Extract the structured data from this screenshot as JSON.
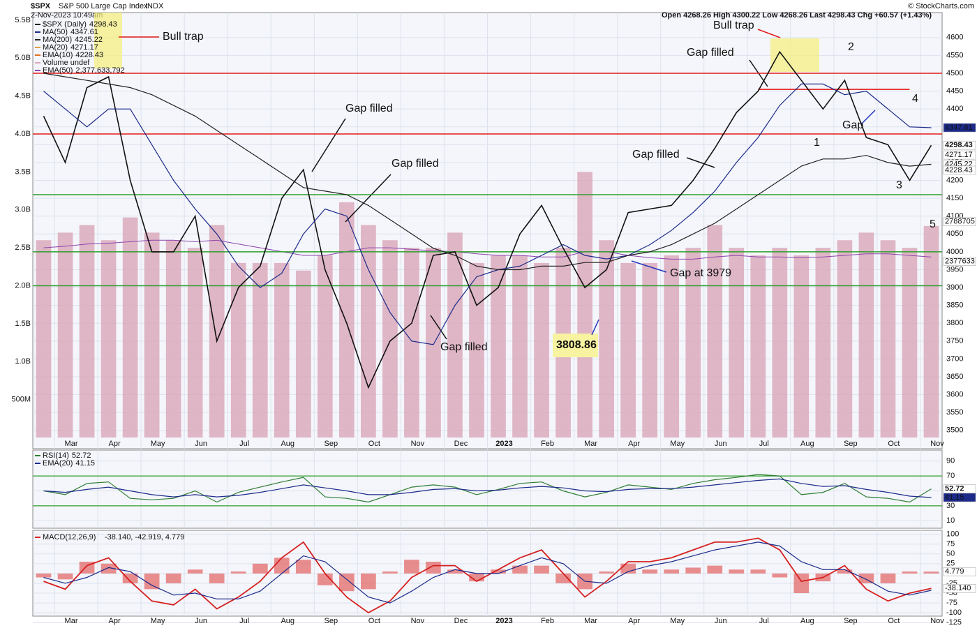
{
  "header": {
    "symbol": "$SPX",
    "name": "S&P 500 Large Cap Index",
    "exchange": "INDX",
    "timestamp": "2-Nov-2023 10:49am",
    "quote": "Open 4268.26  High 4300.22  Low 4268.26  Last 4298.43  Chg +60.57 (+1.43%)",
    "copyright": "© StockCharts.com"
  },
  "annotations": [
    "Bull trap",
    "Bull trap",
    "Gap filled",
    "Gap filled",
    "Gap filled",
    "Gap filled",
    "Gap filled",
    "Gap at 3979",
    "Gap",
    "3808.86",
    "1",
    "2",
    "3",
    "4",
    "5"
  ],
  "chart_data": [
    {
      "type": "line",
      "categories": [
        null,
        "Mar",
        null,
        "Apr",
        null,
        "May",
        null,
        "Jun",
        null,
        "Jul",
        null,
        "Aug",
        null,
        "Sep",
        null,
        "Oct",
        null,
        "Nov",
        null,
        "Dec",
        null,
        "2023",
        null,
        "Feb",
        null,
        "Mar",
        null,
        "Apr",
        null,
        "May",
        null,
        "Jun",
        null,
        "Jul",
        null,
        "Aug",
        null,
        "Sep",
        null,
        "Oct",
        null,
        "Nov"
      ],
      "ylim": [
        3480,
        4670
      ],
      "yticks": [
        3500,
        3550,
        3600,
        3650,
        3700,
        3750,
        3800,
        3850,
        3900,
        3950,
        4000,
        4050,
        4100,
        4150,
        4200,
        4250,
        4300,
        4350,
        4400,
        4450,
        4500,
        4550,
        4600
      ],
      "grid": true,
      "series": [
        {
          "name": "$SPX (Daily)",
          "last": 4298.43,
          "color": "#111111",
          "values": [
            4380,
            4250,
            4460,
            4490,
            4200,
            4000,
            4000,
            4100,
            3750,
            3900,
            3960,
            4150,
            4230,
            3950,
            3800,
            3620,
            3750,
            3800,
            3990,
            4000,
            3850,
            3900,
            4050,
            4130,
            4010,
            3900,
            3950,
            4110,
            4120,
            4130,
            4200,
            4290,
            4390,
            4450,
            4560,
            4480,
            4400,
            4480,
            4320,
            4300,
            4200,
            4298.43
          ]
        },
        {
          "name": "MA(50)",
          "last": 4347.61,
          "color": "#1c2a8a",
          "values": [
            4450,
            4400,
            4350,
            4400,
            4400,
            4300,
            4200,
            4120,
            4050,
            3960,
            3900,
            3940,
            4050,
            4120,
            4100,
            3950,
            3830,
            3750,
            3740,
            3850,
            3930,
            3950,
            3960,
            3990,
            4020,
            3990,
            3980,
            3990,
            4020,
            4060,
            4110,
            4170,
            4250,
            4320,
            4410,
            4470,
            4470,
            4440,
            4450,
            4400,
            4350,
            4347.61
          ]
        },
        {
          "name": "MA(200)",
          "last": 4245.22,
          "color": "#222222",
          "values": [
            4500,
            4490,
            4480,
            4470,
            4460,
            4440,
            4410,
            4380,
            4340,
            4300,
            4260,
            4220,
            4180,
            4170,
            4160,
            4130,
            4090,
            4050,
            4010,
            3990,
            3960,
            3950,
            3950,
            3960,
            3960,
            3970,
            3970,
            3990,
            4000,
            4020,
            4050,
            4080,
            4120,
            4160,
            4200,
            4240,
            4260,
            4260,
            4270,
            4250,
            4240,
            4245.22
          ]
        }
      ],
      "legend_extra": [
        {
          "name": "MA(20)",
          "last": 4271.17,
          "color": "#e0a040"
        },
        {
          "name": "EMA(10)",
          "last": 4228.43,
          "color": "#e07020"
        }
      ],
      "hlines": [
        {
          "value": 4500,
          "color": "#e31a1a"
        },
        {
          "value": 4455,
          "color": "#e31a1a",
          "span": [
            33,
            40
          ]
        },
        {
          "value": 4330,
          "color": "#e31a1a"
        },
        {
          "value": 4160,
          "color": "#2e9e2e"
        },
        {
          "value": 4000,
          "color": "#2e9e2e"
        },
        {
          "value": 3905,
          "color": "#2e9e2e"
        }
      ],
      "volume": {
        "name": "Volume undef",
        "color": "#d9a6b8",
        "values": [
          2600,
          2700,
          2800,
          2600,
          2900,
          2700,
          2600,
          2500,
          2800,
          2300,
          2300,
          2300,
          2200,
          2400,
          3100,
          2800,
          2600,
          2500,
          2500,
          2700,
          2300,
          2400,
          2400,
          2300,
          2500,
          3500,
          2600,
          2300,
          2300,
          2400,
          2500,
          2800,
          2500,
          2400,
          2500,
          2400,
          2500,
          2600,
          2700,
          2600,
          2500,
          2788
        ],
        "ylim": [
          0,
          5600
        ],
        "yticks": [
          {
            "value": 500,
            "label": "500M"
          },
          {
            "value": 1000,
            "label": "1.0B"
          },
          {
            "value": 1500,
            "label": "1.5B"
          },
          {
            "value": 2000,
            "label": "2.0B"
          },
          {
            "value": 2500,
            "label": "2.5B"
          },
          {
            "value": 3000,
            "label": "3.0B"
          },
          {
            "value": 3500,
            "label": "3.5B"
          },
          {
            "value": 4000,
            "label": "4.0B"
          },
          {
            "value": 4500,
            "label": "4.5B"
          },
          {
            "value": 5000,
            "label": "5.0B"
          },
          {
            "value": 5500,
            "label": "5.5B"
          }
        ],
        "ema": {
          "name": "EMA(50)",
          "last_label": "2,377,633,792",
          "color": "#8e44ad",
          "values": [
            2500,
            2520,
            2550,
            2560,
            2580,
            2600,
            2600,
            2580,
            2600,
            2550,
            2500,
            2450,
            2400,
            2400,
            2450,
            2500,
            2500,
            2480,
            2460,
            2450,
            2420,
            2400,
            2400,
            2380,
            2380,
            2450,
            2450,
            2400,
            2370,
            2350,
            2350,
            2380,
            2400,
            2380,
            2380,
            2370,
            2380,
            2400,
            2420,
            2420,
            2400,
            2378
          ]
        },
        "right_labels": [
          "2788705",
          "2377633"
        ]
      }
    },
    {
      "type": "line",
      "ylim": [
        0,
        100
      ],
      "yticks": [
        10,
        30,
        50,
        70,
        90
      ],
      "bands": [
        30,
        70
      ],
      "series": [
        {
          "name": "RSI(14)",
          "last": 52.72,
          "color": "#2e7d32",
          "values": [
            50,
            45,
            60,
            62,
            40,
            38,
            40,
            50,
            35,
            48,
            55,
            62,
            68,
            42,
            40,
            35,
            45,
            55,
            58,
            55,
            45,
            52,
            60,
            62,
            50,
            42,
            48,
            58,
            55,
            52,
            60,
            65,
            68,
            72,
            70,
            45,
            48,
            60,
            42,
            40,
            35,
            52.72
          ]
        },
        {
          "name": "EMA(20)",
          "last": 41.15,
          "color": "#1c2a8a",
          "values": [
            50,
            48,
            52,
            55,
            50,
            45,
            42,
            45,
            42,
            44,
            48,
            53,
            58,
            54,
            50,
            45,
            45,
            48,
            52,
            53,
            50,
            51,
            54,
            56,
            54,
            50,
            49,
            52,
            53,
            53,
            55,
            58,
            61,
            64,
            66,
            60,
            56,
            57,
            52,
            48,
            43,
            41.15
          ]
        }
      ]
    },
    {
      "type": "macd",
      "name": "MACD(12,26,9)",
      "legend_values": "-38.140, -42.919, 4.779",
      "ylim": [
        -130,
        110
      ],
      "yticks": [
        100,
        75,
        50,
        25,
        0,
        -25,
        -50,
        -75,
        -100,
        -125
      ],
      "series": [
        {
          "color": "#d62020",
          "values": [
            -20,
            -40,
            20,
            40,
            -20,
            -70,
            -80,
            -40,
            -90,
            -60,
            -20,
            40,
            80,
            0,
            -60,
            -100,
            -70,
            -10,
            20,
            20,
            -20,
            10,
            40,
            60,
            0,
            -60,
            -20,
            30,
            30,
            40,
            60,
            80,
            80,
            90,
            60,
            -20,
            -10,
            20,
            -40,
            -70,
            -50,
            -38.14
          ]
        },
        {
          "color": "#1c2a8a",
          "values": [
            -10,
            -25,
            -10,
            15,
            5,
            -30,
            -55,
            -50,
            -65,
            -65,
            -45,
            0,
            45,
            30,
            -15,
            -60,
            -75,
            -45,
            -10,
            10,
            0,
            0,
            20,
            40,
            25,
            -20,
            -25,
            5,
            20,
            30,
            45,
            60,
            70,
            80,
            70,
            30,
            10,
            10,
            -15,
            -45,
            -55,
            -42.919
          ]
        }
      ],
      "histogram": {
        "color": "#e46a6a",
        "values": [
          -10,
          -15,
          30,
          25,
          -25,
          -40,
          -25,
          10,
          -25,
          5,
          25,
          40,
          35,
          -30,
          -45,
          -40,
          5,
          35,
          30,
          10,
          -20,
          10,
          20,
          20,
          -25,
          -40,
          5,
          25,
          10,
          10,
          15,
          20,
          10,
          10,
          -10,
          -50,
          -20,
          10,
          -25,
          -25,
          5,
          4.779
        ]
      },
      "right_labels": [
        "4.779",
        "-38.140"
      ]
    }
  ]
}
